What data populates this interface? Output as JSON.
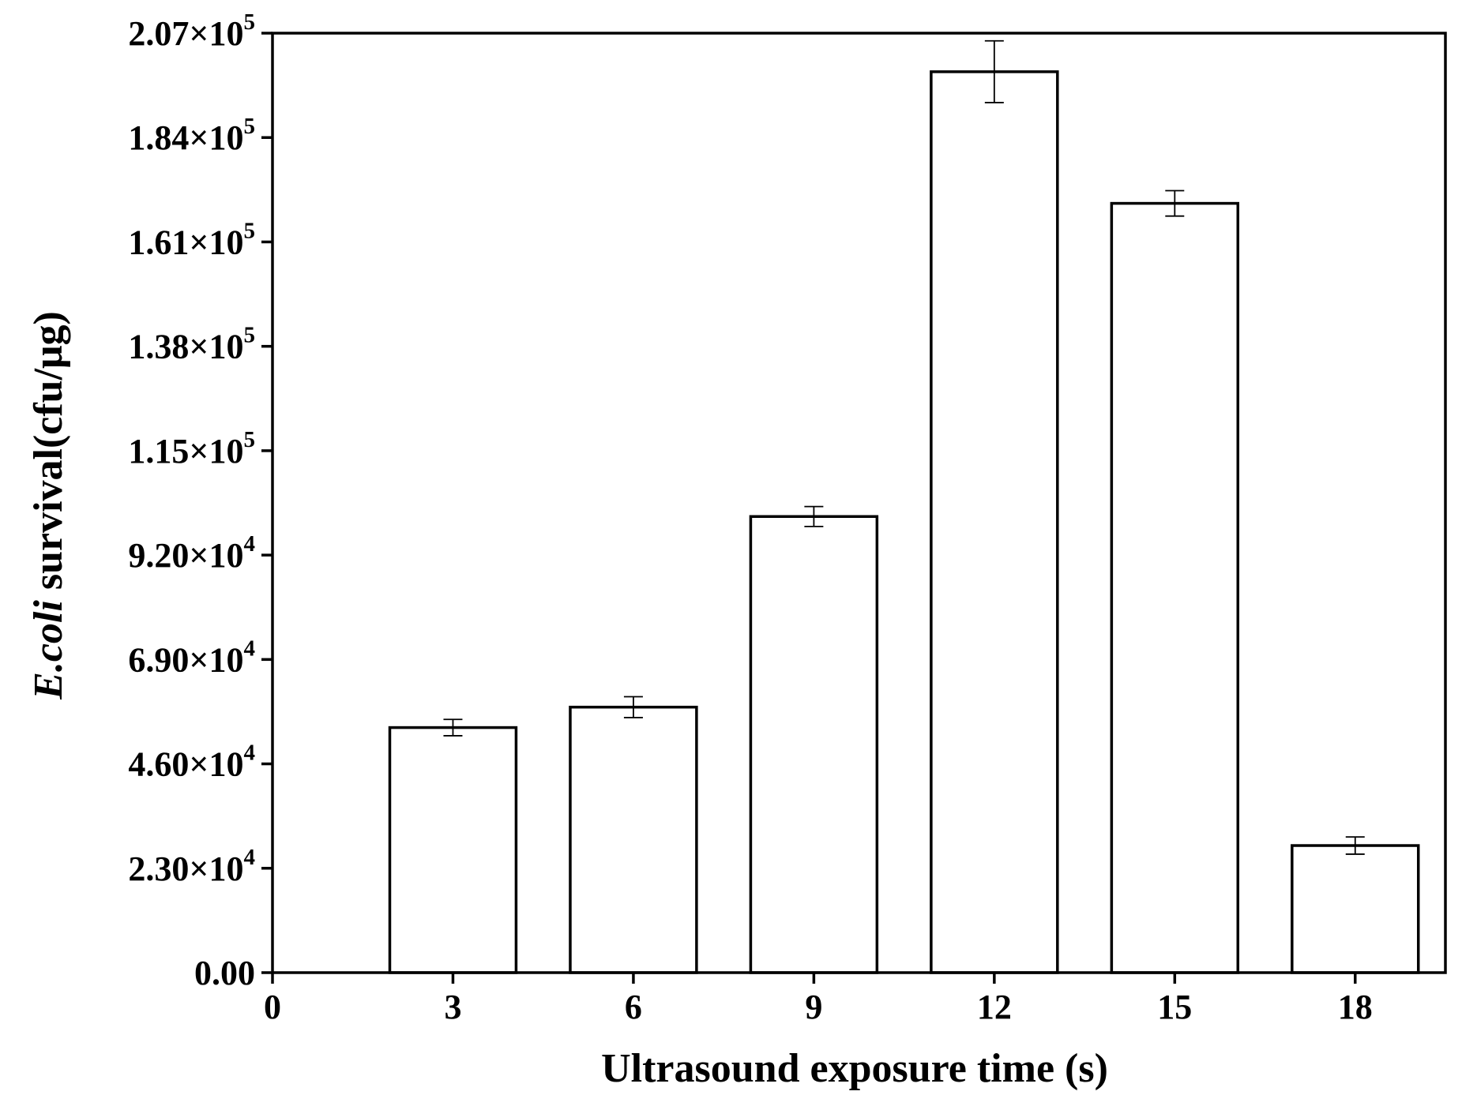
{
  "chart_data": {
    "type": "bar",
    "xlabel": "Ultrasound exposure time (s)",
    "ylabel_italic": "E.coli",
    "ylabel_rest": " survival(cfu/μg)",
    "xlim": [
      0,
      19.5
    ],
    "ylim": [
      0,
      207000
    ],
    "x_ticks": [
      {
        "value": 0,
        "label": "0"
      },
      {
        "value": 3,
        "label": "3"
      },
      {
        "value": 6,
        "label": "6"
      },
      {
        "value": 9,
        "label": "9"
      },
      {
        "value": 12,
        "label": "12"
      },
      {
        "value": 15,
        "label": "15"
      },
      {
        "value": 18,
        "label": "18"
      }
    ],
    "y_ticks": [
      {
        "value": 0,
        "label": "0.00",
        "mantissa": "0.00",
        "exp": ""
      },
      {
        "value": 23000,
        "label": "2.30×10^4",
        "mantissa": "2.30×10",
        "exp": "4"
      },
      {
        "value": 46000,
        "label": "4.60×10^4",
        "mantissa": "4.60×10",
        "exp": "4"
      },
      {
        "value": 69000,
        "label": "6.90×10^4",
        "mantissa": "6.90×10",
        "exp": "4"
      },
      {
        "value": 92000,
        "label": "9.20×10^4",
        "mantissa": "9.20×10",
        "exp": "4"
      },
      {
        "value": 115000,
        "label": "1.15×10^5",
        "mantissa": "1.15×10",
        "exp": "5"
      },
      {
        "value": 138000,
        "label": "1.38×10^5",
        "mantissa": "1.38×10",
        "exp": "5"
      },
      {
        "value": 161000,
        "label": "1.61×10^5",
        "mantissa": "1.61×10",
        "exp": "5"
      },
      {
        "value": 184000,
        "label": "1.84×10^5",
        "mantissa": "1.84×10",
        "exp": "5"
      },
      {
        "value": 207000,
        "label": "2.07×10^5",
        "mantissa": "2.07×10",
        "exp": "5"
      }
    ],
    "bar_width": 2.1,
    "bars": [
      {
        "x": 3,
        "value": 54000,
        "error": 1800
      },
      {
        "x": 6,
        "value": 58500,
        "error": 2300
      },
      {
        "x": 9,
        "value": 100500,
        "error": 2200
      },
      {
        "x": 12,
        "value": 198500,
        "error": 6800
      },
      {
        "x": 15,
        "value": 169500,
        "error": 2800
      },
      {
        "x": 18,
        "value": 28000,
        "error": 1900
      }
    ],
    "bar_fill": "#ffffff",
    "bar_stroke": "#000000",
    "grid": false,
    "legend": "none"
  }
}
